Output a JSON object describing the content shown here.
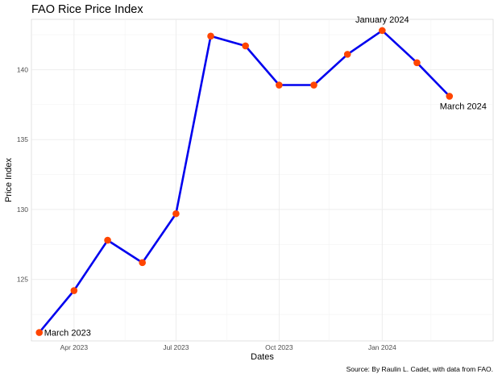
{
  "chart_data": {
    "type": "line",
    "title": "FAO Rice Price Index",
    "xlabel": "Dates",
    "ylabel": "Price Index",
    "caption": "Source: By Raulin L. Cadet, with data from FAO.",
    "x_ticks": [
      {
        "label": "Apr 2023",
        "date": "2023-04-01"
      },
      {
        "label": "Jul 2023",
        "date": "2023-07-01"
      },
      {
        "label": "Oct 2023",
        "date": "2023-10-01"
      },
      {
        "label": "Jan 2024",
        "date": "2024-01-01"
      }
    ],
    "y_ticks": [
      125,
      130,
      135,
      140
    ],
    "xlim": [
      "2023-02-22",
      "2024-04-09"
    ],
    "ylim": [
      120.6,
      143.6
    ],
    "grid": true,
    "colors": {
      "line": "#0000ee",
      "points": "#ff4500"
    },
    "points": [
      {
        "date": "2023-03-01",
        "value": 121.2
      },
      {
        "date": "2023-04-01",
        "value": 124.2
      },
      {
        "date": "2023-05-01",
        "value": 127.8
      },
      {
        "date": "2023-06-01",
        "value": 126.2
      },
      {
        "date": "2023-07-01",
        "value": 129.7
      },
      {
        "date": "2023-08-01",
        "value": 142.4
      },
      {
        "date": "2023-09-01",
        "value": 141.7
      },
      {
        "date": "2023-10-01",
        "value": 138.9
      },
      {
        "date": "2023-11-01",
        "value": 138.9
      },
      {
        "date": "2023-12-01",
        "value": 141.1
      },
      {
        "date": "2024-01-01",
        "value": 142.8
      },
      {
        "date": "2024-02-01",
        "value": 140.5
      },
      {
        "date": "2024-03-01",
        "value": 138.1
      }
    ],
    "annotations": [
      {
        "text": "March 2023",
        "date": "2023-03-01",
        "value": 121.2
      },
      {
        "text": "January 2024",
        "date": "2024-01-01",
        "value": 142.8
      },
      {
        "text": "March 2024",
        "date": "2024-03-01",
        "value": 138.1
      }
    ]
  }
}
